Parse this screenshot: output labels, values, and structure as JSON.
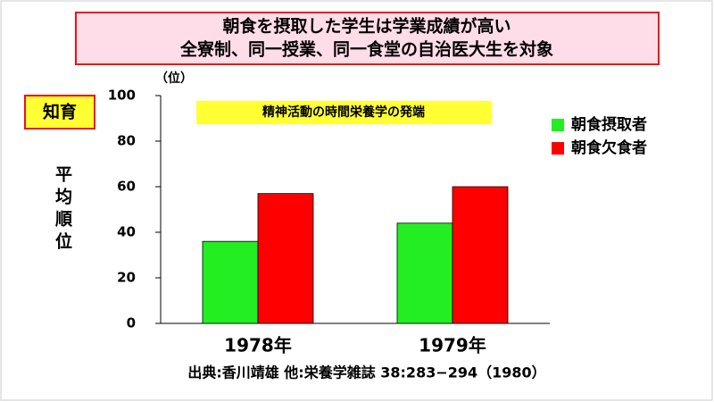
{
  "chart_data": {
    "type": "bar",
    "title": "朝食を摂取した学生は学業成績が高い",
    "subtitle": "全寮制、同一授業、同一食堂の自治医大生を対象",
    "badge": "知育",
    "annotation": "精神活動の時間栄養学の発端",
    "y_label": "平均順位",
    "y_unit": "（位）",
    "source": "出典:香川靖雄 他:栄養学雑誌 38:283−294（1980）",
    "categories": [
      "1978年",
      "1979年"
    ],
    "series": [
      {
        "name": "朝食摂取者",
        "color": "#22ee22",
        "values": [
          36,
          44
        ]
      },
      {
        "name": "朝食欠食者",
        "color": "#ff0000",
        "values": [
          57,
          60
        ]
      }
    ],
    "ylim": [
      0,
      100
    ],
    "yticks": [
      0,
      20,
      40,
      60,
      80,
      100
    ],
    "legend": "right"
  }
}
